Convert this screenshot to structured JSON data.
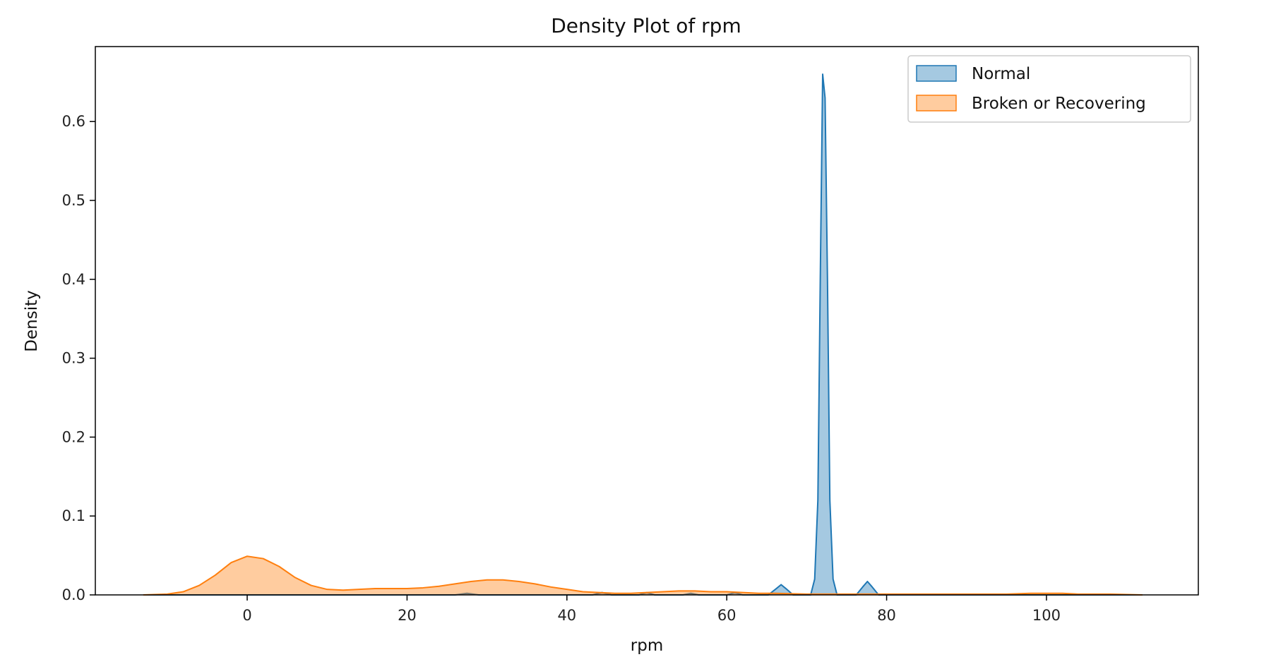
{
  "chart_data": {
    "type": "area",
    "title": "Density Plot of rpm",
    "xlabel": "rpm",
    "ylabel": "Density",
    "xlim": [
      -19,
      119
    ],
    "ylim": [
      0,
      0.695
    ],
    "xticks": [
      0,
      20,
      40,
      60,
      80,
      100
    ],
    "xtick_labels": [
      "0",
      "20",
      "40",
      "60",
      "80",
      "100"
    ],
    "yticks": [
      0.0,
      0.1,
      0.2,
      0.3,
      0.4,
      0.5,
      0.6
    ],
    "ytick_labels": [
      "0.0",
      "0.1",
      "0.2",
      "0.3",
      "0.4",
      "0.5",
      "0.6"
    ],
    "grid": false,
    "legend_position": "top-right",
    "series": [
      {
        "name": "Normal",
        "color": "#1f77b4",
        "fill_opacity": 0.4,
        "points": [
          [
            -13,
            0
          ],
          [
            26,
            0
          ],
          [
            27.5,
            0.002
          ],
          [
            29,
            0
          ],
          [
            43.2,
            0
          ],
          [
            44.4,
            0.003
          ],
          [
            45.6,
            0
          ],
          [
            49,
            0
          ],
          [
            50,
            0.003
          ],
          [
            51,
            0
          ],
          [
            54.5,
            0
          ],
          [
            55.5,
            0.002
          ],
          [
            56.5,
            0
          ],
          [
            60,
            0
          ],
          [
            61,
            0.003
          ],
          [
            62,
            0
          ],
          [
            65.2,
            0
          ],
          [
            66.2,
            0.008
          ],
          [
            66.8,
            0.013
          ],
          [
            67.4,
            0.008
          ],
          [
            68.3,
            0
          ],
          [
            70.5,
            0
          ],
          [
            71,
            0.02
          ],
          [
            71.4,
            0.12
          ],
          [
            71.7,
            0.4
          ],
          [
            72,
            0.66
          ],
          [
            72.3,
            0.63
          ],
          [
            72.6,
            0.4
          ],
          [
            72.9,
            0.12
          ],
          [
            73.3,
            0.02
          ],
          [
            73.8,
            0
          ],
          [
            76.2,
            0
          ],
          [
            77,
            0.01
          ],
          [
            77.6,
            0.017
          ],
          [
            78.2,
            0.01
          ],
          [
            79,
            0
          ],
          [
            112,
            0
          ]
        ]
      },
      {
        "name": "Broken or Recovering",
        "color": "#ff7f0e",
        "fill_opacity": 0.4,
        "points": [
          [
            -13,
            0
          ],
          [
            -10,
            0.001
          ],
          [
            -8,
            0.004
          ],
          [
            -6,
            0.012
          ],
          [
            -4,
            0.025
          ],
          [
            -2,
            0.041
          ],
          [
            0,
            0.049
          ],
          [
            2,
            0.046
          ],
          [
            4,
            0.036
          ],
          [
            6,
            0.022
          ],
          [
            8,
            0.012
          ],
          [
            10,
            0.007
          ],
          [
            12,
            0.006
          ],
          [
            14,
            0.007
          ],
          [
            16,
            0.008
          ],
          [
            18,
            0.008
          ],
          [
            20,
            0.008
          ],
          [
            22,
            0.009
          ],
          [
            24,
            0.011
          ],
          [
            26,
            0.014
          ],
          [
            28,
            0.017
          ],
          [
            30,
            0.019
          ],
          [
            32,
            0.019
          ],
          [
            34,
            0.017
          ],
          [
            36,
            0.014
          ],
          [
            38,
            0.01
          ],
          [
            40,
            0.007
          ],
          [
            42,
            0.004
          ],
          [
            44,
            0.003
          ],
          [
            46,
            0.002
          ],
          [
            48,
            0.002
          ],
          [
            50,
            0.003
          ],
          [
            52,
            0.004
          ],
          [
            54,
            0.005
          ],
          [
            56,
            0.005
          ],
          [
            58,
            0.004
          ],
          [
            60,
            0.004
          ],
          [
            62,
            0.003
          ],
          [
            64,
            0.002
          ],
          [
            66,
            0.002
          ],
          [
            70,
            0.001
          ],
          [
            75,
            0.001
          ],
          [
            80,
            0.001
          ],
          [
            85,
            0.001
          ],
          [
            90,
            0.001
          ],
          [
            95,
            0.001
          ],
          [
            98,
            0.002
          ],
          [
            100,
            0.002
          ],
          [
            102,
            0.002
          ],
          [
            104,
            0.001
          ],
          [
            108,
            0.001
          ],
          [
            112,
            0
          ]
        ]
      }
    ]
  }
}
